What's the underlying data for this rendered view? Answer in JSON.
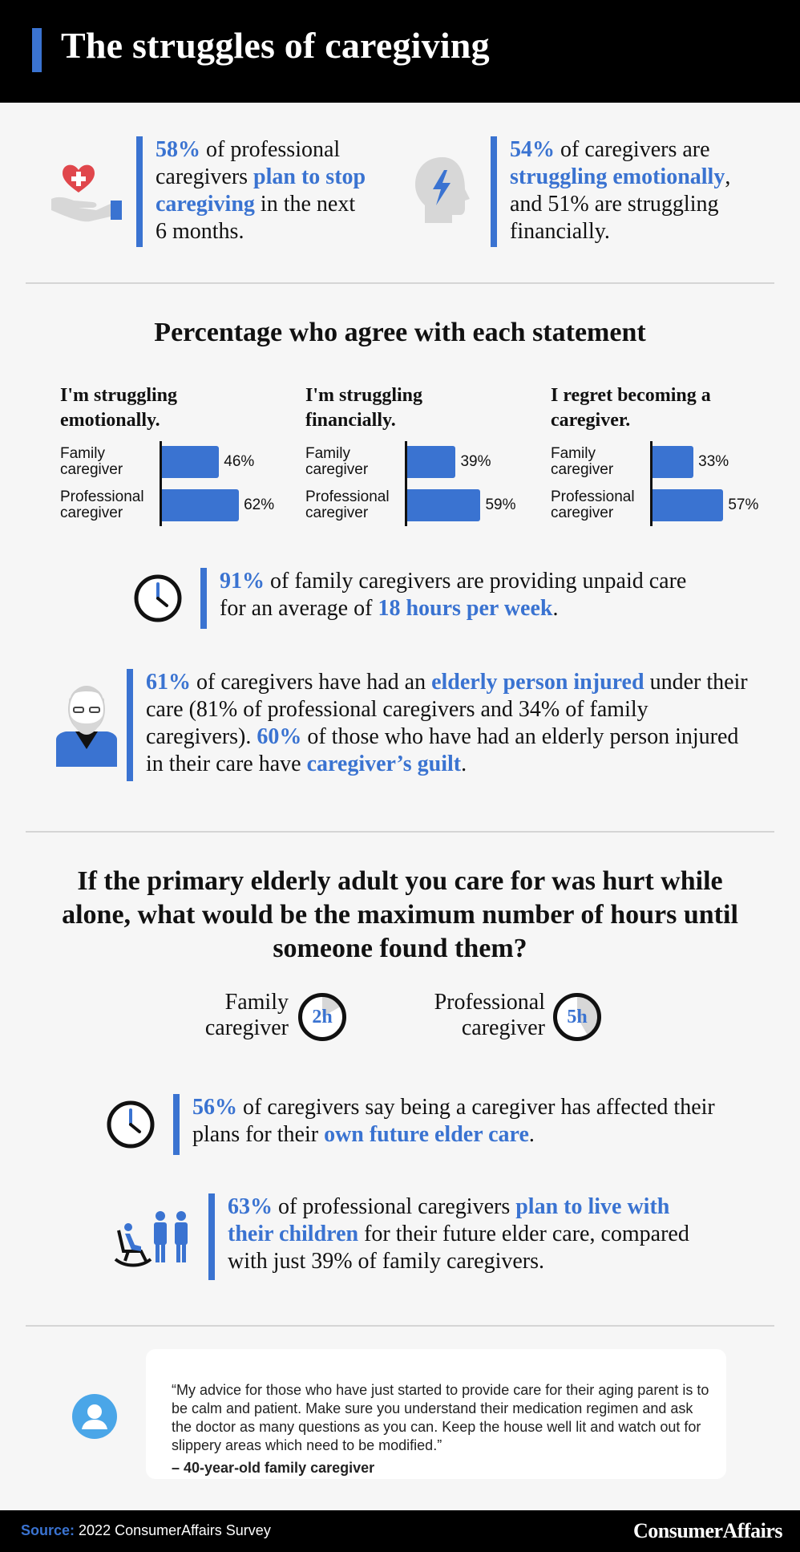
{
  "header": {
    "title": "The struggles of caregiving"
  },
  "stat1": {
    "pct": "58%",
    "t1": " of professional caregivers ",
    "hl": "plan to stop caregiving",
    "t2": " in the next 6 months."
  },
  "stat2": {
    "pct": "54%",
    "t1": " of caregivers are ",
    "hl": "struggling emotionally",
    "t2": ", and 51% are struggling financially."
  },
  "section1": {
    "title": "Percentage who agree with each statement"
  },
  "chart_data": [
    {
      "type": "bar",
      "title": "I'm struggling emotionally.",
      "categories": [
        "Family caregiver",
        "Professional caregiver"
      ],
      "values": [
        46,
        62
      ],
      "value_labels": [
        "46%",
        "62%"
      ]
    },
    {
      "type": "bar",
      "title": "I'm struggling financially.",
      "categories": [
        "Family caregiver",
        "Professional caregiver"
      ],
      "values": [
        39,
        59
      ],
      "value_labels": [
        "39%",
        "59%"
      ]
    },
    {
      "type": "bar",
      "title": "I regret becoming a caregiver.",
      "categories": [
        "Family caregiver",
        "Professional caregiver"
      ],
      "values": [
        33,
        57
      ],
      "value_labels": [
        "33%",
        "57%"
      ]
    }
  ],
  "stat3": {
    "pct": "91%",
    "t1": " of family caregivers are providing unpaid care for an average of ",
    "hl": "18 hours per week",
    "t2": "."
  },
  "stat4": {
    "pct": "61%",
    "t1": " of caregivers have had an ",
    "hl": "elderly person injured",
    "t2": " under their care (81% of professional caregivers and 34% of family caregivers). ",
    "pct2": "60%",
    "t3": " of those who have had an elderly person injured in their care have ",
    "hl2": "caregiver’s guilt",
    "t4": "."
  },
  "section2": {
    "title": "If the primary elderly adult you care for was hurt while alone, what would be the maximum number of hours until someone found them?"
  },
  "hours": {
    "family_label": "Family caregiver",
    "family_value": "2h",
    "professional_label": "Professional caregiver",
    "professional_value": "5h"
  },
  "stat5": {
    "pct": "56%",
    "t1": " of caregivers say being a caregiver has affected their plans for their ",
    "hl": "own future elder care",
    "t2": "."
  },
  "stat6": {
    "pct": "63%",
    "t1": " of professional caregivers ",
    "hl": "plan to live with their children",
    "t2": " for their future elder care, compared with just 39% of family caregivers."
  },
  "quote": {
    "text": "“My advice for those who have just started to provide care for their aging parent is to be calm and patient. Make sure you understand their medication regimen and ask the doctor as many questions as you can. Keep the house well lit and watch out for slippery areas which need to be modified.”",
    "attribution": "– 40-year-old family caregiver"
  },
  "footer": {
    "source_label": "Source:",
    "source_text": " 2022 ConsumerAffairs Survey",
    "brand": "ConsumerAffairs"
  },
  "colors": {
    "accent": "#3a73d1",
    "header_bg": "#000000",
    "heart": "#e0474c"
  }
}
